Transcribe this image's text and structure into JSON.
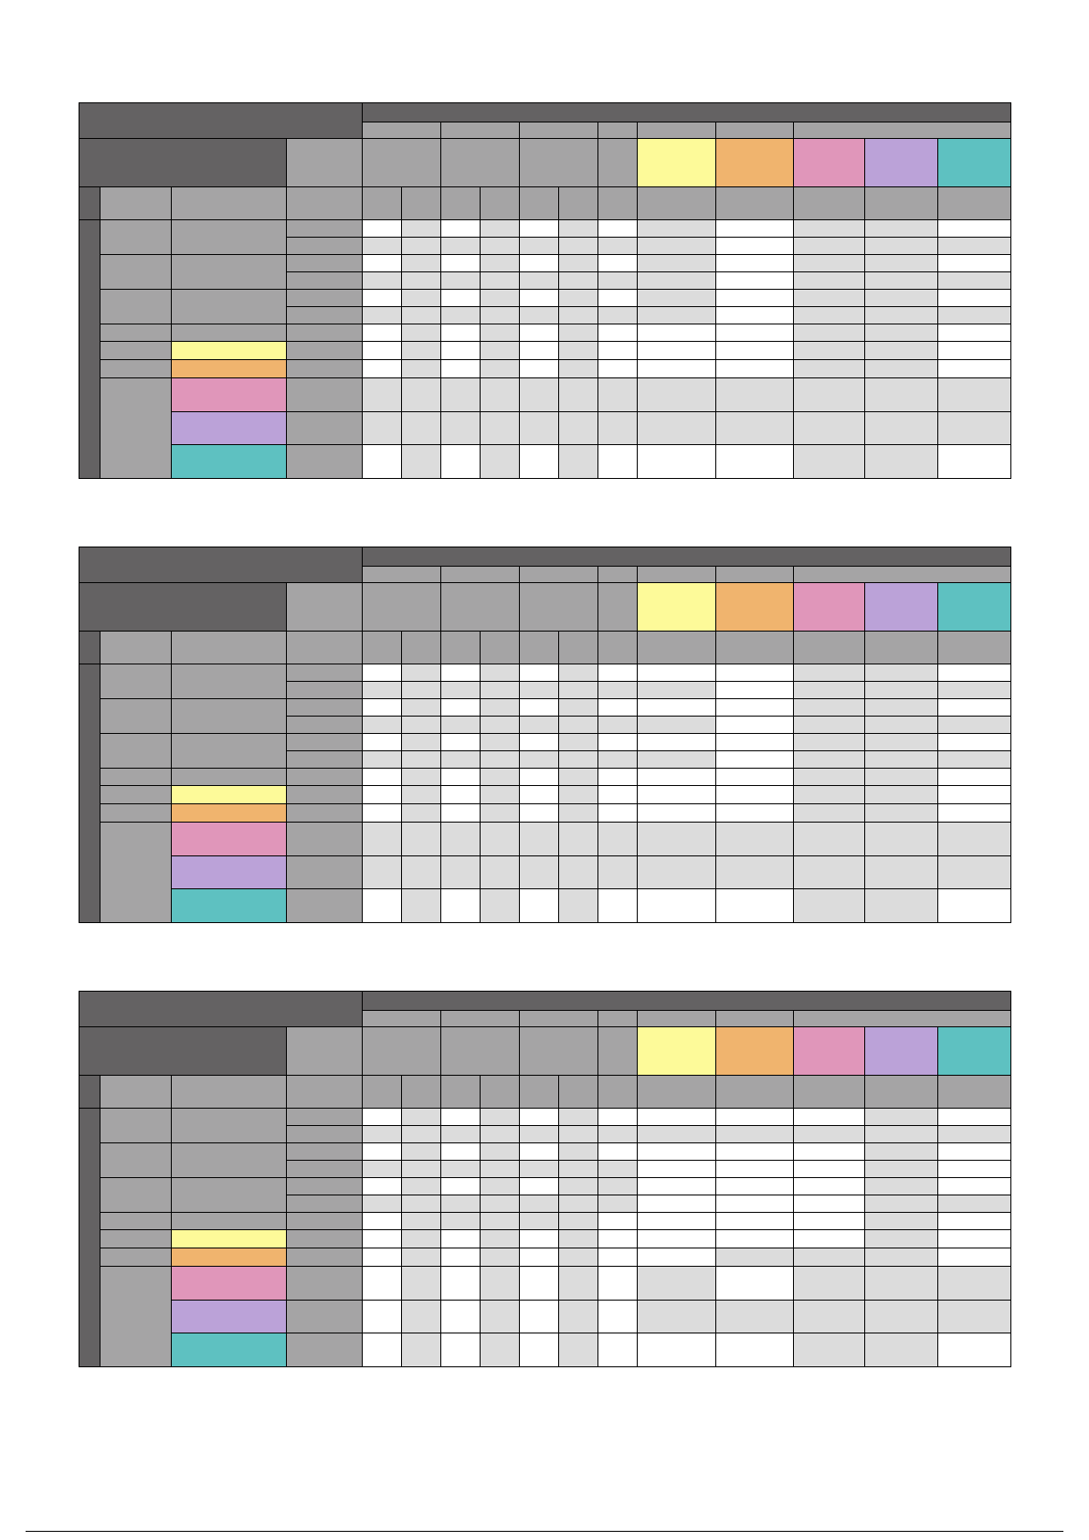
{
  "colors": {
    "dark_header": "#646263",
    "gray_header": "#a5a4a5",
    "cell_white": "#ffffff",
    "cell_light": "#dcdcdc",
    "yellow": "#fdfa99",
    "orange": "#f0b46e",
    "pink": "#e096ba",
    "purple": "#bba2d8",
    "teal": "#5ec1c1",
    "border": "#000000"
  },
  "matrices": [
    {
      "rows": [
        [
          "W",
          "L",
          "W",
          "L",
          "W",
          "L",
          "W",
          "L",
          "W",
          "L",
          "L",
          "W"
        ],
        [
          "L",
          "L",
          "L",
          "L",
          "L",
          "L",
          "L",
          "L",
          "W",
          "L",
          "L",
          "L"
        ],
        [
          "W",
          "L",
          "W",
          "L",
          "W",
          "L",
          "W",
          "L",
          "W",
          "L",
          "L",
          "W"
        ],
        [
          "L",
          "L",
          "L",
          "L",
          "L",
          "L",
          "L",
          "L",
          "W",
          "L",
          "L",
          "L"
        ],
        [
          "W",
          "L",
          "W",
          "L",
          "W",
          "L",
          "W",
          "L",
          "W",
          "L",
          "L",
          "W"
        ],
        [
          "L",
          "L",
          "L",
          "L",
          "L",
          "L",
          "L",
          "L",
          "W",
          "L",
          "L",
          "L"
        ],
        [
          "W",
          "L",
          "W",
          "L",
          "W",
          "L",
          "W",
          "W",
          "W",
          "L",
          "L",
          "W"
        ],
        [
          "W",
          "L",
          "W",
          "L",
          "W",
          "L",
          "W",
          "W",
          "W",
          "L",
          "L",
          "W"
        ],
        [
          "W",
          "L",
          "W",
          "L",
          "W",
          "L",
          "W",
          "W",
          "W",
          "L",
          "L",
          "W"
        ],
        [
          "L",
          "L",
          "L",
          "L",
          "L",
          "L",
          "L",
          "L",
          "L",
          "L",
          "L",
          "L"
        ],
        [
          "L",
          "L",
          "L",
          "L",
          "L",
          "L",
          "L",
          "L",
          "L",
          "L",
          "L",
          "L"
        ],
        [
          "W",
          "L",
          "W",
          "L",
          "W",
          "L",
          "W",
          "W",
          "W",
          "L",
          "L",
          "W"
        ]
      ]
    },
    {
      "rows": [
        [
          "W",
          "L",
          "W",
          "L",
          "W",
          "L",
          "W",
          "W",
          "W",
          "L",
          "L",
          "W"
        ],
        [
          "L",
          "L",
          "L",
          "L",
          "L",
          "L",
          "L",
          "L",
          "W",
          "L",
          "L",
          "L"
        ],
        [
          "W",
          "L",
          "W",
          "L",
          "W",
          "L",
          "W",
          "W",
          "W",
          "L",
          "L",
          "W"
        ],
        [
          "L",
          "L",
          "L",
          "L",
          "L",
          "L",
          "L",
          "L",
          "W",
          "L",
          "L",
          "L"
        ],
        [
          "W",
          "L",
          "W",
          "L",
          "W",
          "L",
          "W",
          "W",
          "W",
          "L",
          "L",
          "W"
        ],
        [
          "L",
          "L",
          "L",
          "L",
          "L",
          "L",
          "L",
          "L",
          "W",
          "L",
          "L",
          "L"
        ],
        [
          "W",
          "L",
          "W",
          "L",
          "W",
          "L",
          "W",
          "W",
          "W",
          "L",
          "L",
          "W"
        ],
        [
          "W",
          "L",
          "W",
          "L",
          "W",
          "L",
          "W",
          "W",
          "W",
          "L",
          "L",
          "W"
        ],
        [
          "W",
          "L",
          "W",
          "L",
          "W",
          "L",
          "W",
          "W",
          "W",
          "L",
          "L",
          "W"
        ],
        [
          "L",
          "L",
          "L",
          "L",
          "L",
          "L",
          "L",
          "L",
          "L",
          "L",
          "L",
          "L"
        ],
        [
          "L",
          "L",
          "L",
          "L",
          "L",
          "L",
          "L",
          "L",
          "L",
          "L",
          "L",
          "L"
        ],
        [
          "W",
          "L",
          "W",
          "L",
          "W",
          "L",
          "W",
          "W",
          "W",
          "L",
          "L",
          "W"
        ]
      ]
    },
    {
      "rows": [
        [
          "W",
          "L",
          "W",
          "L",
          "W",
          "L",
          "W",
          "W",
          "W",
          "W",
          "L",
          "W"
        ],
        [
          "L",
          "L",
          "L",
          "L",
          "L",
          "L",
          "L",
          "L",
          "L",
          "L",
          "L",
          "L"
        ],
        [
          "W",
          "L",
          "W",
          "L",
          "W",
          "L",
          "W",
          "W",
          "W",
          "W",
          "L",
          "W"
        ],
        [
          "L",
          "L",
          "L",
          "L",
          "L",
          "L",
          "L",
          "W",
          "W",
          "W",
          "L",
          "W"
        ],
        [
          "W",
          "L",
          "W",
          "L",
          "W",
          "L",
          "L",
          "W",
          "W",
          "W",
          "L",
          "W"
        ],
        [
          "L",
          "L",
          "L",
          "L",
          "L",
          "L",
          "L",
          "W",
          "W",
          "W",
          "L",
          "L"
        ],
        [
          "W",
          "L",
          "L",
          "L",
          "L",
          "L",
          "W",
          "W",
          "W",
          "W",
          "L",
          "W"
        ],
        [
          "W",
          "L",
          "W",
          "L",
          "W",
          "L",
          "W",
          "W",
          "W",
          "W",
          "L",
          "W"
        ],
        [
          "W",
          "L",
          "W",
          "L",
          "W",
          "L",
          "W",
          "W",
          "L",
          "L",
          "L",
          "W"
        ],
        [
          "W",
          "L",
          "W",
          "L",
          "W",
          "L",
          "W",
          "L",
          "W",
          "L",
          "L",
          "L"
        ],
        [
          "W",
          "L",
          "W",
          "L",
          "W",
          "L",
          "W",
          "L",
          "L",
          "L",
          "L",
          "L"
        ],
        [
          "W",
          "L",
          "W",
          "L",
          "W",
          "L",
          "W",
          "W",
          "W",
          "L",
          "L",
          "W"
        ]
      ]
    }
  ]
}
